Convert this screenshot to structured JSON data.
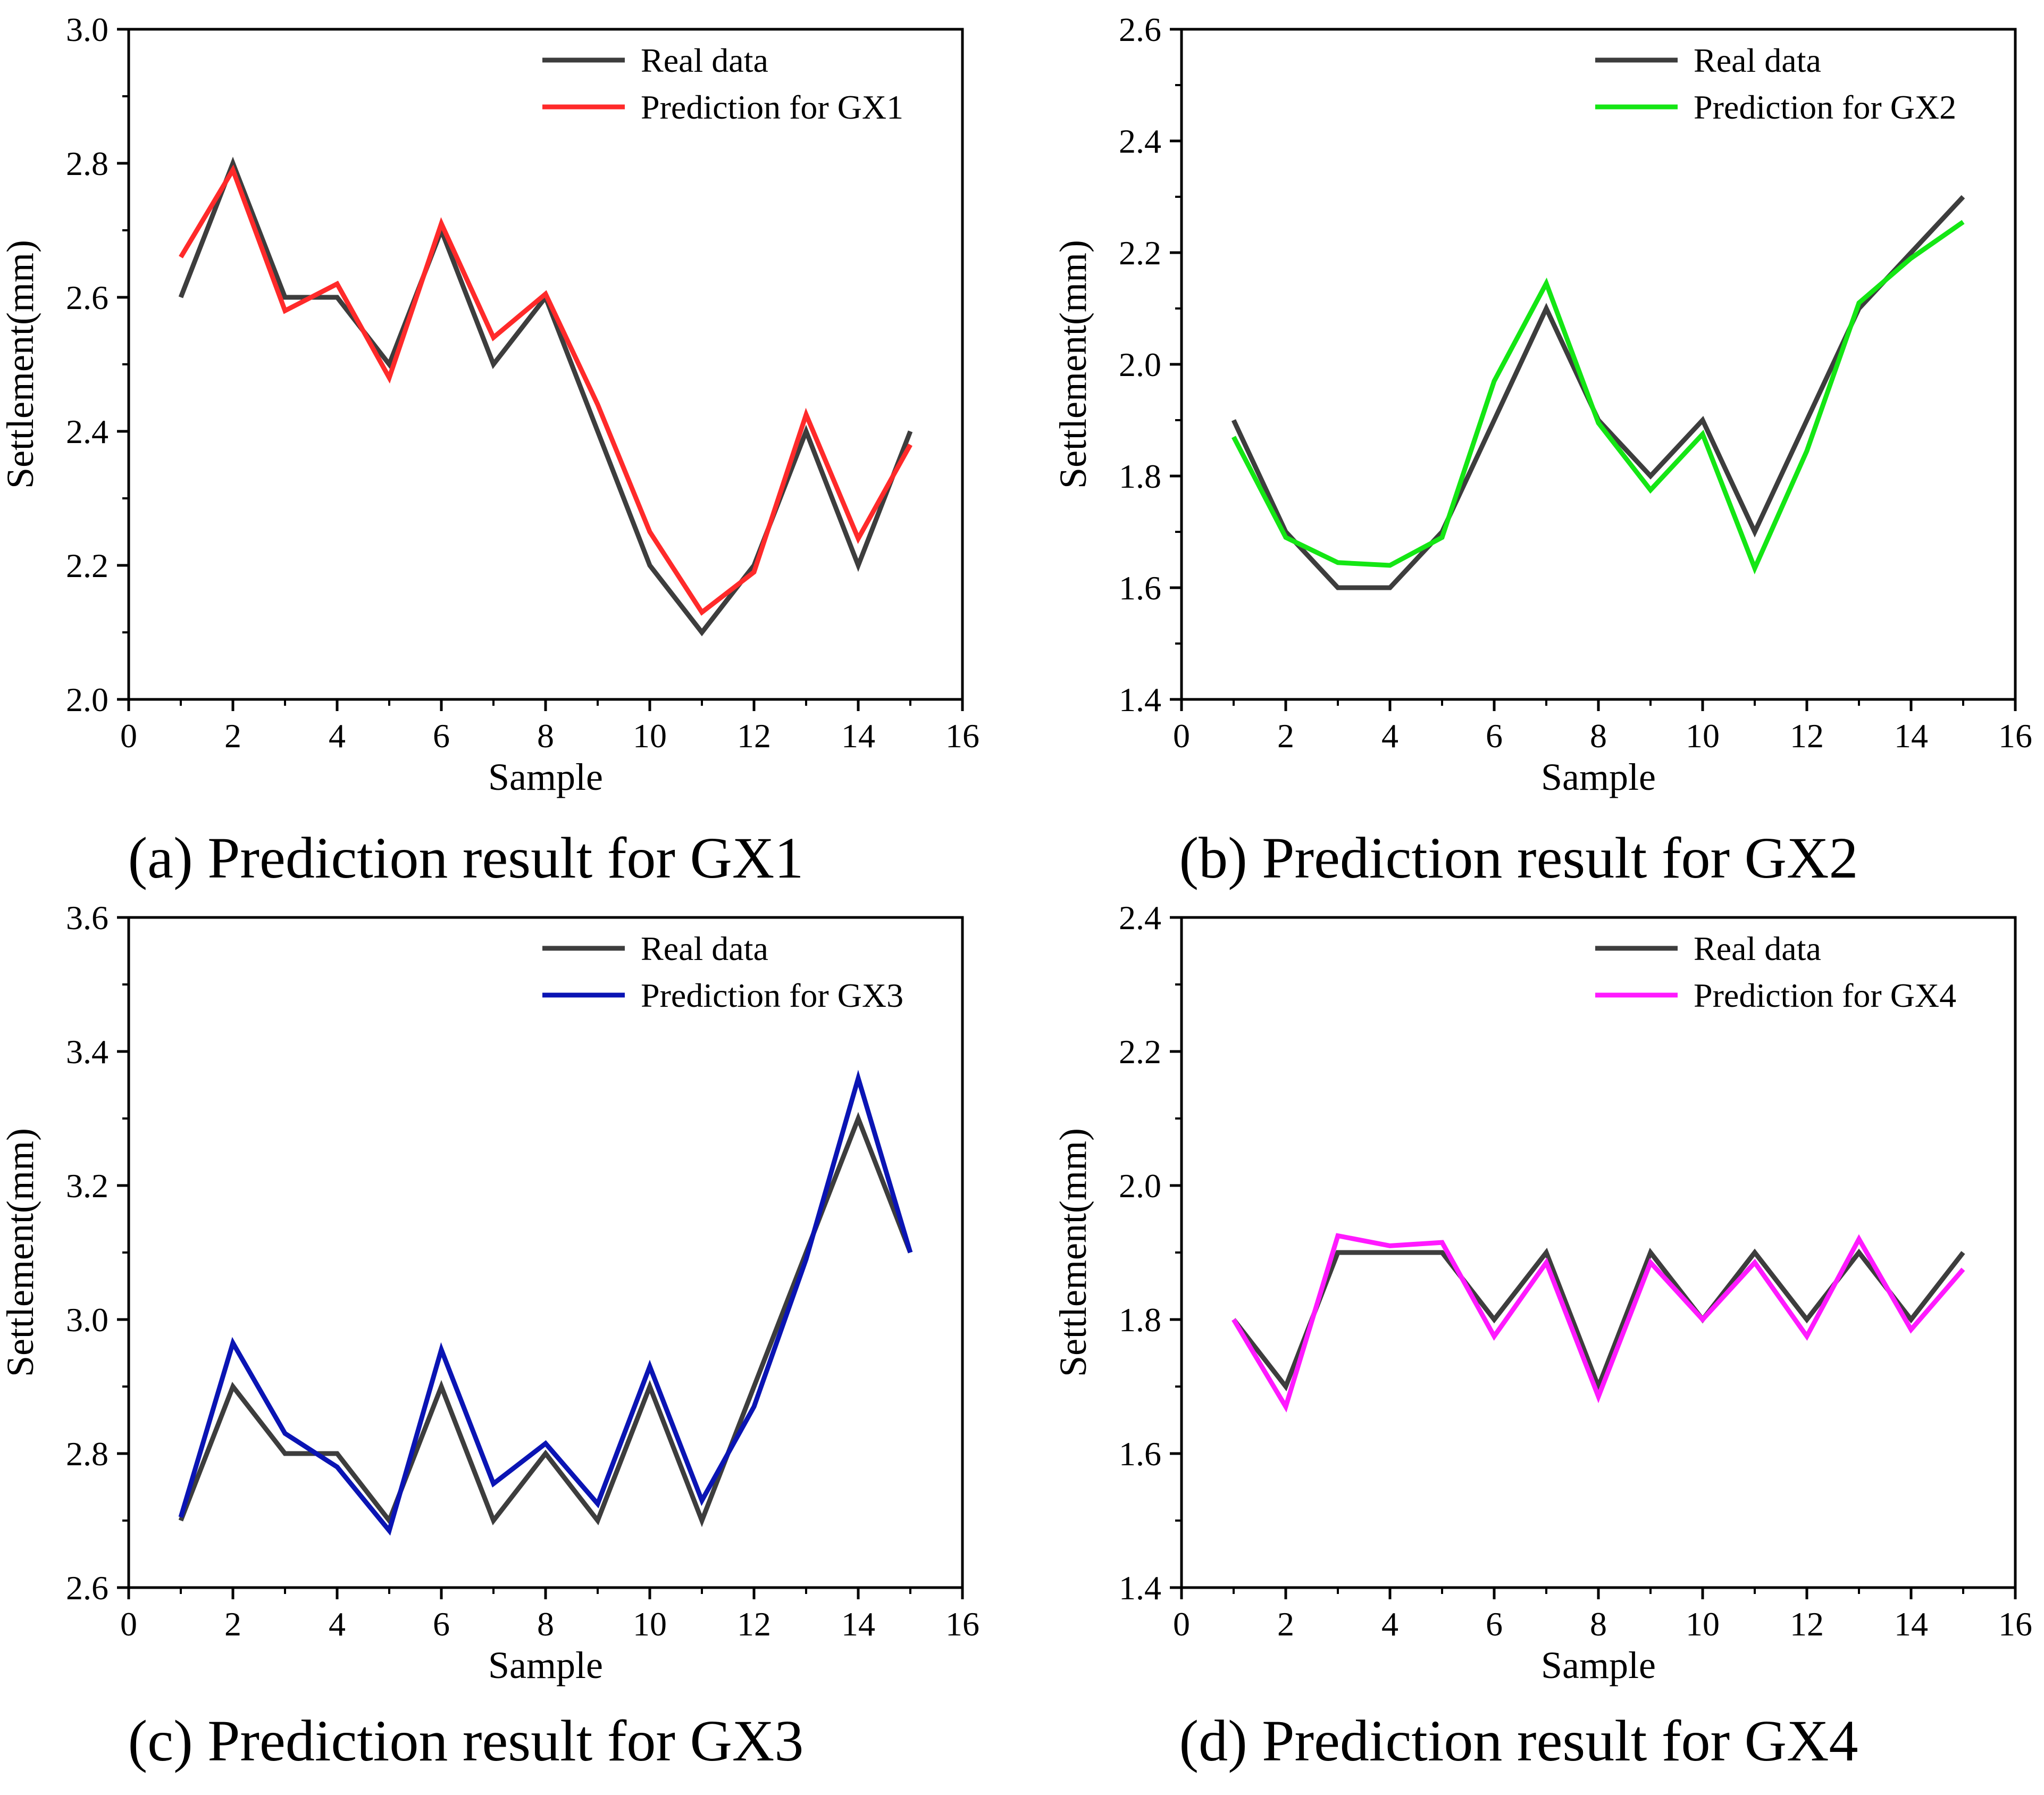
{
  "colors": {
    "real": "#3d3d3d",
    "gx1": "#ff2a2a",
    "gx2": "#14e614",
    "gx3": "#0a14b4",
    "gx4": "#ff1aff",
    "axis": "#000000"
  },
  "chart_data": [
    {
      "type": "line",
      "caption": "(a) Prediction result for GX1",
      "xlabel": "Sample",
      "ylabel": "Settlement(mm)",
      "xlim": [
        0,
        16
      ],
      "ylim": [
        2.0,
        3.0
      ],
      "xticks": [
        "0",
        "2",
        "4",
        "6",
        "8",
        "10",
        "12",
        "14",
        "16"
      ],
      "yticks": [
        "2.0",
        "2.2",
        "2.4",
        "2.6",
        "2.8",
        "3.0"
      ],
      "legend_position": "top-right",
      "x": [
        1,
        2,
        3,
        4,
        5,
        6,
        7,
        8,
        9,
        10,
        11,
        12,
        13,
        14,
        15
      ],
      "series": [
        {
          "name": "Real data",
          "color_key": "real",
          "values": [
            2.6,
            2.8,
            2.6,
            2.6,
            2.5,
            2.7,
            2.5,
            2.6,
            2.4,
            2.2,
            2.1,
            2.2,
            2.4,
            2.2,
            2.4
          ]
        },
        {
          "name": "Prediction for GX1",
          "color_key": "gx1",
          "values": [
            2.66,
            2.79,
            2.58,
            2.62,
            2.48,
            2.71,
            2.54,
            2.605,
            2.44,
            2.25,
            2.13,
            2.19,
            2.425,
            2.24,
            2.38
          ]
        }
      ]
    },
    {
      "type": "line",
      "caption": "(b) Prediction result for GX2",
      "xlabel": "Sample",
      "ylabel": "Settlement(mm)",
      "xlim": [
        0,
        16
      ],
      "ylim": [
        1.4,
        2.6
      ],
      "xticks": [
        "0",
        "2",
        "4",
        "6",
        "8",
        "10",
        "12",
        "14",
        "16"
      ],
      "yticks": [
        "1.4",
        "1.6",
        "1.8",
        "2.0",
        "2.2",
        "2.4",
        "2.6"
      ],
      "legend_position": "top-right",
      "x": [
        1,
        2,
        3,
        4,
        5,
        6,
        7,
        8,
        9,
        10,
        11,
        12,
        13,
        14,
        15
      ],
      "series": [
        {
          "name": "Real data",
          "color_key": "real",
          "values": [
            1.9,
            1.7,
            1.6,
            1.6,
            1.7,
            1.9,
            2.1,
            1.9,
            1.8,
            1.9,
            1.7,
            1.9,
            2.1,
            2.2,
            2.3
          ]
        },
        {
          "name": "Prediction for GX2",
          "color_key": "gx2",
          "values": [
            1.87,
            1.69,
            1.645,
            1.64,
            1.69,
            1.97,
            2.145,
            1.895,
            1.775,
            1.875,
            1.635,
            1.845,
            2.11,
            2.19,
            2.255
          ]
        }
      ]
    },
    {
      "type": "line",
      "caption": "(c) Prediction result for GX3",
      "xlabel": "Sample",
      "ylabel": "Settlement(mm)",
      "xlim": [
        0,
        16
      ],
      "ylim": [
        2.6,
        3.6
      ],
      "xticks": [
        "0",
        "2",
        "4",
        "6",
        "8",
        "10",
        "12",
        "14",
        "16"
      ],
      "yticks": [
        "2.6",
        "2.8",
        "3.0",
        "3.2",
        "3.4",
        "3.6"
      ],
      "legend_position": "top-right",
      "x": [
        1,
        2,
        3,
        4,
        5,
        6,
        7,
        8,
        9,
        10,
        11,
        12,
        13,
        14,
        15
      ],
      "series": [
        {
          "name": "Real data",
          "color_key": "real",
          "values": [
            2.7,
            2.9,
            2.8,
            2.8,
            2.7,
            2.9,
            2.7,
            2.8,
            2.7,
            2.9,
            2.7,
            2.9,
            3.1,
            3.3,
            3.1
          ]
        },
        {
          "name": "Prediction for GX3",
          "color_key": "gx3",
          "values": [
            2.705,
            2.965,
            2.83,
            2.78,
            2.685,
            2.955,
            2.755,
            2.815,
            2.725,
            2.93,
            2.73,
            2.87,
            3.09,
            3.36,
            3.1
          ]
        }
      ]
    },
    {
      "type": "line",
      "caption": "(d) Prediction result for GX4",
      "xlabel": "Sample",
      "ylabel": "Settlement(mm)",
      "xlim": [
        0,
        16
      ],
      "ylim": [
        1.4,
        2.4
      ],
      "xticks": [
        "0",
        "2",
        "4",
        "6",
        "8",
        "10",
        "12",
        "14",
        "16"
      ],
      "yticks": [
        "1.4",
        "1.6",
        "1.8",
        "2.0",
        "2.2",
        "2.4"
      ],
      "legend_position": "top-right",
      "x": [
        1,
        2,
        3,
        4,
        5,
        6,
        7,
        8,
        9,
        10,
        11,
        12,
        13,
        14,
        15
      ],
      "series": [
        {
          "name": "Real data",
          "color_key": "real",
          "values": [
            1.8,
            1.7,
            1.9,
            1.9,
            1.9,
            1.8,
            1.9,
            1.7,
            1.9,
            1.8,
            1.9,
            1.8,
            1.9,
            1.8,
            1.9
          ]
        },
        {
          "name": "Prediction for GX4",
          "color_key": "gx4",
          "values": [
            1.8,
            1.67,
            1.925,
            1.91,
            1.915,
            1.775,
            1.885,
            1.685,
            1.885,
            1.8,
            1.885,
            1.775,
            1.92,
            1.785,
            1.875
          ]
        }
      ]
    }
  ]
}
